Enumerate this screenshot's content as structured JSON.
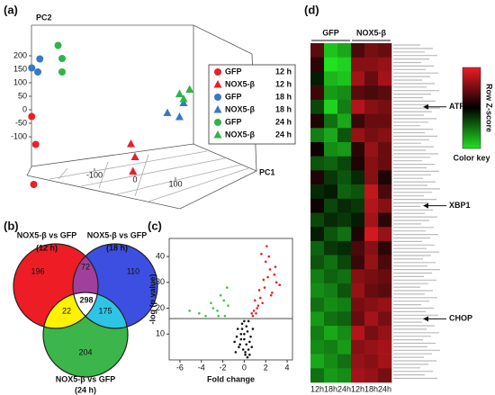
{
  "chart_data": [
    {
      "type": "scatter3d",
      "panel": "(a)",
      "xlabel": "PC1",
      "ylabel": "PC2",
      "xticks": [
        -100,
        0,
        100
      ],
      "yticks": [
        200,
        150,
        100,
        50,
        0,
        -50,
        -100
      ],
      "series": [
        {
          "name": "GFP",
          "time": "12 h",
          "marker": "circle",
          "color": "#e8202a",
          "x": [
            -255,
            -245,
            -250
          ],
          "values": [
            -110,
            -210,
            -360
          ]
        },
        {
          "name": "NOX5-β",
          "time": "12 h",
          "marker": "triangle",
          "color": "#e8202a",
          "x": [
            -10,
            0,
            -5
          ],
          "values": [
            -130,
            -175,
            -230
          ]
        },
        {
          "name": "GFP",
          "time": "18 h",
          "marker": "circle",
          "color": "#3a78c2",
          "x": [
            -255,
            -240,
            -235
          ],
          "values": [
            70,
            60,
            110
          ]
        },
        {
          "name": "NOX5-β",
          "time": "18 h",
          "marker": "triangle",
          "color": "#3a78c2",
          "x": [
            80,
            110,
            120
          ],
          "values": [
            15,
            10,
            65
          ]
        },
        {
          "name": "GFP",
          "time": "24 h",
          "marker": "circle",
          "color": "#2fb34a",
          "x": [
            -190,
            -180,
            -180
          ],
          "values": [
            175,
            130,
            80
          ]
        },
        {
          "name": "NOX5-β",
          "time": "24 h",
          "marker": "triangle",
          "color": "#2fb34a",
          "x": [
            110,
            135,
            120
          ],
          "values": [
            95,
            120,
            80
          ]
        }
      ]
    },
    {
      "type": "venn",
      "panel": "(b)",
      "sets": [
        {
          "name": "NOX5-β vs GFP",
          "time": "(12 h)"
        },
        {
          "name": "NOX5-β vs GFP",
          "time": "(18 h)"
        },
        {
          "name": "NOX5-β vs GFP",
          "time": "(24 h)"
        }
      ],
      "regions": [
        {
          "sets": [
            0
          ],
          "value": 196,
          "color": "#ee1c24"
        },
        {
          "sets": [
            1
          ],
          "value": 110,
          "color": "#3d4fe0"
        },
        {
          "sets": [
            2
          ],
          "value": 204,
          "color": "#3cb54a"
        },
        {
          "sets": [
            0,
            1
          ],
          "value": 72,
          "color": "#a0409c"
        },
        {
          "sets": [
            0,
            2
          ],
          "value": 22,
          "color": "#fff200"
        },
        {
          "sets": [
            1,
            2
          ],
          "value": 175,
          "color": "#2ec4e6"
        },
        {
          "sets": [
            0,
            1,
            2
          ],
          "value": 298,
          "color": "#ffffff"
        }
      ]
    },
    {
      "type": "volcano",
      "panel": "(c)",
      "xlabel": "Fold change",
      "ylabel": "-log (p value)",
      "xlim": [
        -7,
        4.5
      ],
      "ylim": [
        0,
        47
      ],
      "xticks": [
        -6,
        -4,
        -2,
        0,
        2,
        4
      ],
      "yticks": [
        10,
        20,
        30,
        40
      ],
      "threshold": 16,
      "series": [
        {
          "color": "#111111",
          "x": [
            -0.8,
            -0.5,
            -0.3,
            0,
            0.2,
            0.4,
            0.6,
            -0.6,
            -0.2,
            0.1,
            0.3,
            0.5,
            -0.4,
            0,
            0.2,
            -0.1,
            0.7,
            -0.7,
            0.4,
            -0.3,
            0.1,
            0.8,
            -0.9,
            0.5,
            0.0,
            -0.2,
            0.3
          ],
          "values": [
            3,
            5,
            8,
            10,
            6,
            4,
            9,
            12,
            14,
            2,
            11,
            7,
            6,
            15,
            13,
            4,
            5,
            9,
            15,
            10,
            3,
            12,
            7,
            2,
            8,
            12,
            1
          ]
        },
        {
          "color": "#3cc43c",
          "x": [
            -1.8,
            -2.5,
            -3.1,
            -2.2,
            -4.2,
            -1.6,
            -2.9,
            -3.6,
            -1.9,
            -5.1,
            -2.4,
            -1.5
          ],
          "values": [
            17,
            19,
            22,
            25,
            18,
            28,
            20,
            17,
            23,
            19,
            17,
            21
          ]
        },
        {
          "color": "#e8202a",
          "x": [
            0.8,
            1.2,
            1.5,
            1.9,
            2.2,
            2.6,
            3.0,
            1.1,
            1.7,
            2.4,
            0.9,
            1.4,
            2.0,
            2.8,
            3.3,
            1.6,
            2.1,
            1.3,
            2.5,
            1.8,
            0.7,
            2.9,
            1.0,
            2.3
          ],
          "values": [
            17,
            20,
            24,
            28,
            32,
            26,
            30,
            18,
            22,
            35,
            19,
            27,
            38,
            33,
            29,
            41,
            44,
            21,
            25,
            31,
            18,
            36,
            23,
            40
          ]
        }
      ]
    },
    {
      "type": "heatmap",
      "panel": "(d)",
      "groups": [
        {
          "name": "GFP",
          "columns": [
            0,
            1,
            2
          ]
        },
        {
          "name": "NOX5-β",
          "columns": [
            3,
            4,
            5
          ]
        }
      ],
      "columns": [
        "12h",
        "18h",
        "24h",
        "12h",
        "18h",
        "24h"
      ],
      "zlim": [
        -1.6,
        1.6
      ],
      "colors": [
        "#22e022",
        "#000000",
        "#ee1c24"
      ],
      "colorbar_label": "Row Z-score",
      "colorbar_title": "Color key",
      "annotations": [
        {
          "label": "ATF4",
          "row": 4
        },
        {
          "label": "XBP1",
          "row": 11
        },
        {
          "label": "CHOP",
          "row": 19
        }
      ],
      "values": [
        [
          0.6,
          -1.4,
          -1.2,
          0.5,
          0.8,
          0.7
        ],
        [
          0.3,
          -1.6,
          -1.5,
          0.9,
          0.9,
          1.0
        ],
        [
          -0.2,
          -1.3,
          -1.4,
          1.1,
          0.7,
          1.1
        ],
        [
          0.4,
          -1.1,
          -1.0,
          0.6,
          0.5,
          0.6
        ],
        [
          -0.5,
          -1.5,
          -0.9,
          1.2,
          0.9,
          0.8
        ],
        [
          0.2,
          -0.8,
          -1.2,
          0.4,
          0.7,
          0.7
        ],
        [
          -0.9,
          -1.2,
          -0.6,
          1.0,
          0.8,
          0.9
        ],
        [
          0.1,
          -1.0,
          -1.1,
          0.3,
          1.0,
          0.7
        ],
        [
          -0.6,
          -0.7,
          -0.5,
          0.2,
          0.9,
          0.7
        ],
        [
          0.2,
          -0.4,
          -0.6,
          -0.3,
          0.9,
          0.2
        ],
        [
          -0.3,
          -0.2,
          -0.7,
          -0.6,
          1.3,
          0.5
        ],
        [
          0.1,
          -0.5,
          -0.3,
          -0.4,
          1.2,
          0.9
        ],
        [
          -0.5,
          -0.3,
          -0.4,
          -0.2,
          1.1,
          0.3
        ],
        [
          -0.2,
          -0.6,
          -0.8,
          0.2,
          1.4,
          1.0
        ],
        [
          -0.7,
          -0.4,
          -0.3,
          0.5,
          0.9,
          0.3
        ],
        [
          -0.6,
          -0.8,
          -0.5,
          0.4,
          1.0,
          0.5
        ],
        [
          -0.9,
          -0.7,
          -0.8,
          0.9,
          0.8,
          0.7
        ],
        [
          -1.0,
          -0.9,
          -0.6,
          1.0,
          0.7,
          0.6
        ],
        [
          -0.8,
          -1.0,
          -0.9,
          0.8,
          0.9,
          1.0
        ],
        [
          -1.1,
          -0.8,
          -0.7,
          0.7,
          1.1,
          0.8
        ],
        [
          -0.9,
          -1.2,
          -1.0,
          1.2,
          0.8,
          1.0
        ],
        [
          -1.0,
          -0.9,
          -1.1,
          0.9,
          1.0,
          1.1
        ],
        [
          -1.2,
          -1.0,
          -0.8,
          1.0,
          0.9,
          1.1
        ],
        [
          -0.8,
          -1.1,
          -1.0,
          1.1,
          1.0,
          0.8
        ]
      ]
    }
  ]
}
